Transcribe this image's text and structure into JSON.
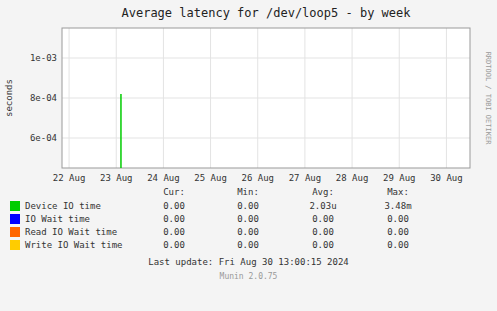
{
  "chart_data": {
    "type": "line",
    "title": "Average latency for /dev/loop5  - by week",
    "y_label": "seconds",
    "xlim": [
      -0.15,
      8.5
    ],
    "xticks": [
      {
        "value": 0,
        "label": "22 Aug"
      },
      {
        "value": 1,
        "label": "23 Aug"
      },
      {
        "value": 2,
        "label": "24 Aug"
      },
      {
        "value": 3,
        "label": "25 Aug"
      },
      {
        "value": 4,
        "label": "26 Aug"
      },
      {
        "value": 5,
        "label": "27 Aug"
      },
      {
        "value": 6,
        "label": "28 Aug"
      },
      {
        "value": 7,
        "label": "29 Aug"
      },
      {
        "value": 8,
        "label": "30 Aug"
      }
    ],
    "ylim": [
      0.00045,
      0.00115
    ],
    "yticks": [
      {
        "value": 0.0006,
        "label": "6e-04"
      },
      {
        "value": 0.0008,
        "label": "8e-04"
      },
      {
        "value": 0.001,
        "label": "1e-03"
      }
    ],
    "grid": true,
    "series": [
      {
        "name": "Device IO time",
        "color": "#00cc00",
        "x": [
          1.1,
          1.1
        ],
        "values": [
          0.00045,
          0.00082
        ]
      },
      {
        "name": "IO Wait time",
        "color": "#0000ff"
      },
      {
        "name": "Read IO Wait time",
        "color": "#ff6600"
      },
      {
        "name": "Write IO Wait time",
        "color": "#ffcc00"
      }
    ],
    "table": {
      "headers": [
        "Cur:",
        "Min:",
        "Avg:",
        "Max:"
      ],
      "rows": [
        [
          "0.00",
          "0.00",
          "2.03u",
          "3.48m"
        ],
        [
          "0.00",
          "0.00",
          "0.00",
          "0.00"
        ],
        [
          "0.00",
          "0.00",
          "0.00",
          "0.00"
        ],
        [
          "0.00",
          "0.00",
          "0.00",
          "0.00"
        ]
      ]
    },
    "annotations": [
      "Last update: Fri Aug 30 13:00:15 2024",
      "Munin 2.0.75",
      "RRDTOOL / TOBI OETIKER"
    ]
  }
}
